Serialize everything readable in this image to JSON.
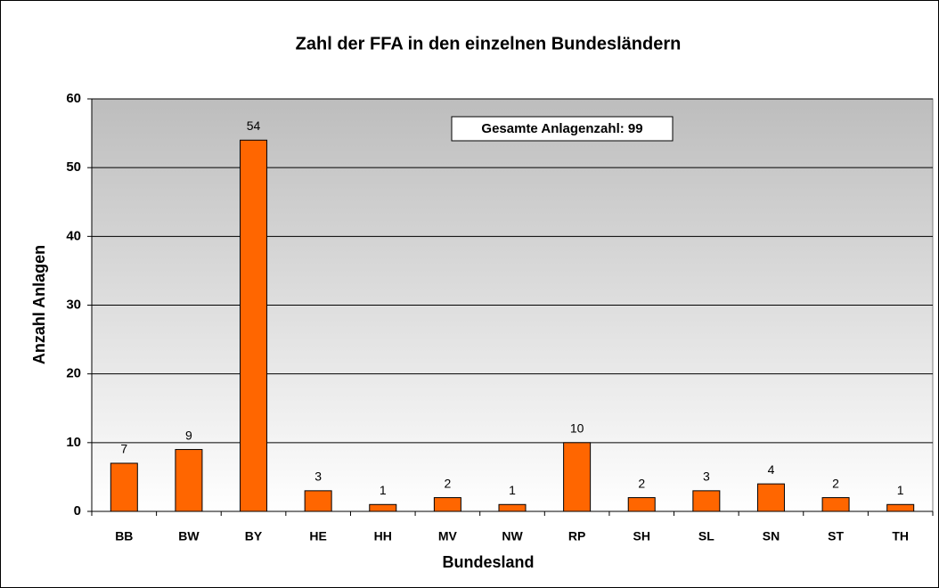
{
  "chart_data": {
    "type": "bar",
    "title": "Zahl der FFA in den einzelnen Bundesländern",
    "x_label": "Bundesland",
    "y_label": "Anzahl Anlagen",
    "annotation": "Gesamte Anlagenzahl: 99",
    "categories": [
      "BB",
      "BW",
      "BY",
      "HE",
      "HH",
      "MV",
      "NW",
      "RP",
      "SH",
      "SL",
      "SN",
      "ST",
      "TH"
    ],
    "values": [
      7,
      9,
      54,
      3,
      1,
      2,
      1,
      10,
      2,
      3,
      4,
      2,
      1
    ],
    "color": "#ff6600",
    "ylim": [
      0,
      60
    ],
    "yticks": [
      0,
      10,
      20,
      30,
      40,
      50,
      60
    ],
    "grid": true
  }
}
